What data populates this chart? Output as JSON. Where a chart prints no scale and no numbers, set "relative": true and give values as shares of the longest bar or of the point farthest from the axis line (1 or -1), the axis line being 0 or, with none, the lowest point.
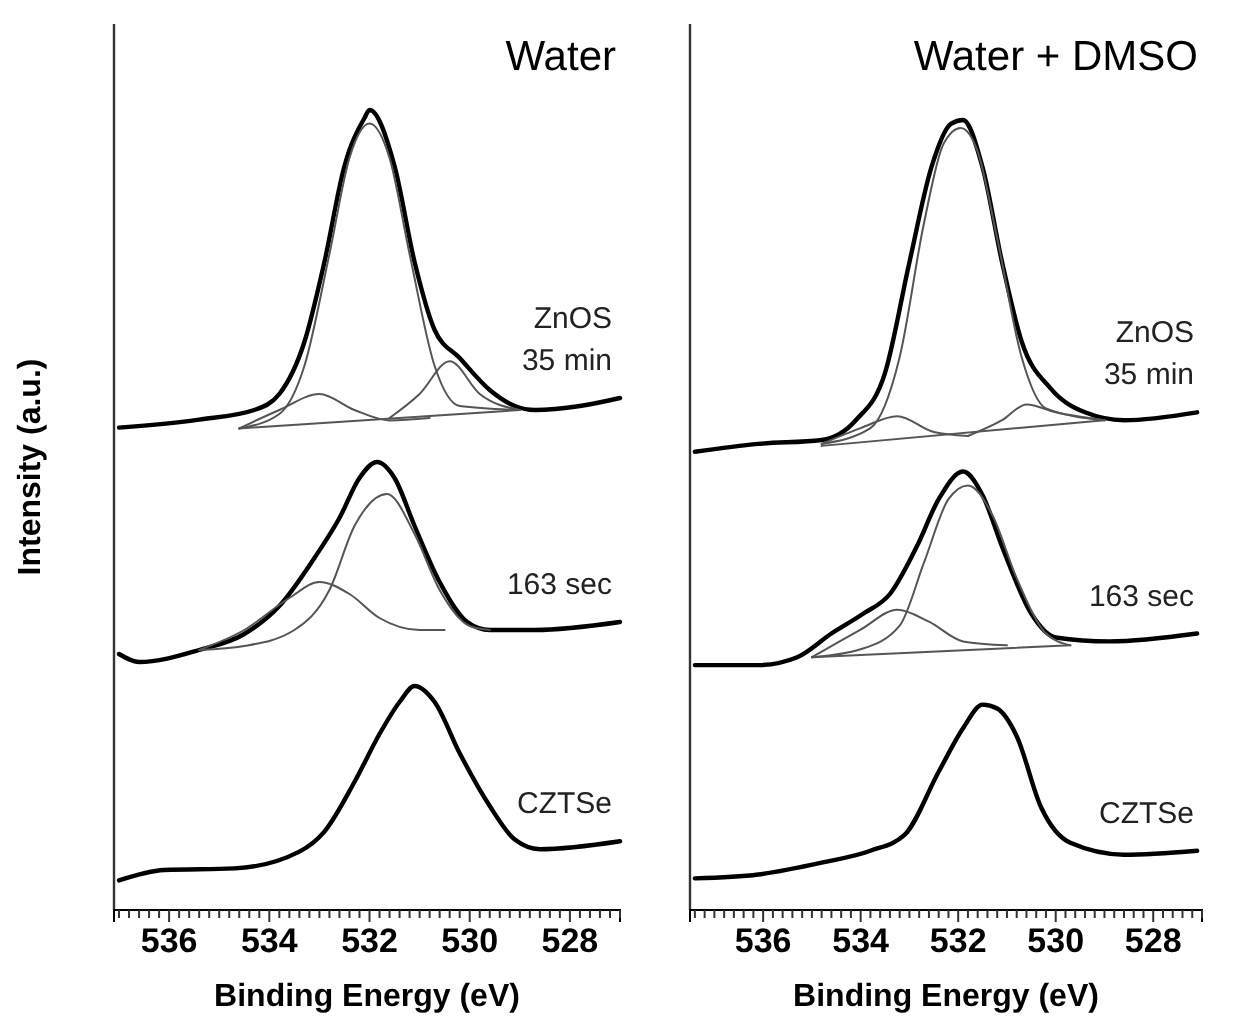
{
  "chart_data": [
    {
      "type": "line",
      "title": "Water",
      "xlabel": "Binding Energy (eV)",
      "ylabel": "Intensity (a.u.)",
      "relative": true,
      "xlim": [
        537.1,
        527
      ],
      "xticks": [
        {
          "value": 537,
          "label": null
        },
        {
          "value": 536.8,
          "label": null
        },
        {
          "value": 536.6,
          "label": null
        },
        {
          "value": 536.4,
          "label": null
        },
        {
          "value": 536.2,
          "label": null
        },
        536,
        {
          "value": 535.8,
          "label": null
        },
        {
          "value": 535.6,
          "label": null
        },
        {
          "value": 535.4,
          "label": null
        },
        {
          "value": 535.2,
          "label": null
        },
        {
          "value": 535,
          "label": null
        },
        {
          "value": 534.8,
          "label": null
        },
        {
          "value": 534.6,
          "label": null
        },
        {
          "value": 534.4,
          "label": null
        },
        {
          "value": 534.2,
          "label": null
        },
        534,
        {
          "value": 533.8,
          "label": null
        },
        {
          "value": 533.6,
          "label": null
        },
        {
          "value": 533.4,
          "label": null
        },
        {
          "value": 533.2,
          "label": null
        },
        {
          "value": 533,
          "label": null
        },
        {
          "value": 532.8,
          "label": null
        },
        {
          "value": 532.6,
          "label": null
        },
        {
          "value": 532.4,
          "label": null
        },
        {
          "value": 532.2,
          "label": null
        },
        532,
        {
          "value": 531.8,
          "label": null
        },
        {
          "value": 531.6,
          "label": null
        },
        {
          "value": 531.4,
          "label": null
        },
        {
          "value": 531.2,
          "label": null
        },
        {
          "value": 531,
          "label": null
        },
        {
          "value": 530.8,
          "label": null
        },
        {
          "value": 530.6,
          "label": null
        },
        {
          "value": 530.4,
          "label": null
        },
        {
          "value": 530.2,
          "label": null
        },
        530,
        {
          "value": 529.8,
          "label": null
        },
        {
          "value": 529.6,
          "label": null
        },
        {
          "value": 529.4,
          "label": null
        },
        {
          "value": 529.2,
          "label": null
        },
        {
          "value": 529,
          "label": null
        },
        {
          "value": 528.8,
          "label": null
        },
        {
          "value": 528.6,
          "label": null
        },
        {
          "value": 528.4,
          "label": null
        },
        {
          "value": 528.2,
          "label": null
        },
        528,
        {
          "value": 527.8,
          "label": null
        },
        {
          "value": 527.6,
          "label": null
        },
        {
          "value": 527.4,
          "label": null
        },
        {
          "value": 527.2,
          "label": null
        },
        {
          "value": 527,
          "label": null
        }
      ],
      "series": [
        {
          "name": "ZnOS\n35 min",
          "color": "#000000",
          "x": [
            537.0,
            535.4,
            534.3,
            533.8,
            533.3,
            532.9,
            532.5,
            532.1,
            532.0,
            531.5,
            531.1,
            530.7,
            530.2,
            529.6,
            529.1,
            528.7,
            527.8,
            527.0
          ],
          "values": [
            0.603,
            0.613,
            0.625,
            0.645,
            0.71,
            0.81,
            0.93,
            0.99,
            1.0,
            0.93,
            0.81,
            0.725,
            0.69,
            0.65,
            0.63,
            0.625,
            0.63,
            0.64
          ]
        },
        {
          "color": "#555555",
          "x": [
            534.6,
            533.8,
            533.3,
            532.8,
            532.4,
            532.0,
            531.6,
            531.2,
            530.7,
            530.2,
            529.0
          ],
          "values": [
            0.602,
            0.62,
            0.68,
            0.82,
            0.94,
            0.983,
            0.94,
            0.82,
            0.68,
            0.63,
            0.625
          ]
        },
        {
          "color": "#555555",
          "x": [
            534.6,
            533.8,
            533.0,
            532.3,
            531.6,
            530.8
          ],
          "values": [
            0.602,
            0.625,
            0.645,
            0.625,
            0.612,
            0.615
          ]
        },
        {
          "color": "#555555",
          "x": [
            531.6,
            531.0,
            530.4,
            529.8,
            529.0
          ],
          "values": [
            0.615,
            0.645,
            0.686,
            0.645,
            0.625
          ]
        },
        {
          "color": "#555555",
          "x": [
            534.6,
            529.0
          ],
          "values": [
            0.602,
            0.625
          ]
        },
        {
          "name": "163 sec",
          "color": "#000000",
          "x": [
            537.0,
            536.6,
            535.4,
            534.5,
            533.8,
            533.1,
            532.6,
            532.2,
            531.85,
            531.5,
            531.1,
            530.6,
            530.05,
            529.6,
            528.7,
            527.0
          ],
          "values": [
            0.32,
            0.31,
            0.325,
            0.345,
            0.38,
            0.44,
            0.49,
            0.54,
            0.56,
            0.54,
            0.48,
            0.41,
            0.36,
            0.35,
            0.35,
            0.36
          ]
        },
        {
          "color": "#555555",
          "x": [
            535.4,
            534.5,
            533.5,
            532.8,
            532.3,
            531.65,
            531.1,
            530.6,
            530.0,
            529.6
          ],
          "values": [
            0.325,
            0.33,
            0.35,
            0.4,
            0.48,
            0.52,
            0.47,
            0.4,
            0.355,
            0.35
          ]
        },
        {
          "color": "#555555",
          "x": [
            535.4,
            534.5,
            533.6,
            533.0,
            532.4,
            531.8,
            531.0,
            530.5
          ],
          "values": [
            0.325,
            0.35,
            0.39,
            0.41,
            0.395,
            0.365,
            0.35,
            0.35
          ]
        },
        {
          "name": "CZTSe",
          "color": "#000000",
          "x": [
            537.0,
            536.1,
            534.7,
            533.4,
            532.9,
            532.3,
            531.8,
            531.4,
            531.1,
            530.7,
            530.2,
            529.6,
            529.1,
            528.6,
            527.0
          ],
          "values": [
            0.037,
            0.05,
            0.052,
            0.073,
            0.098,
            0.16,
            0.22,
            0.26,
            0.28,
            0.26,
            0.196,
            0.13,
            0.088,
            0.076,
            0.086
          ]
        }
      ]
    },
    {
      "type": "line",
      "title": "Water + DMSO",
      "xlabel": "Binding Energy (eV)",
      "relative": true,
      "xlim": [
        537.5,
        527
      ],
      "xticks": [
        {
          "value": 537.4,
          "label": null
        },
        {
          "value": 537.2,
          "label": null
        },
        {
          "value": 537,
          "label": null
        },
        {
          "value": 536.8,
          "label": null
        },
        {
          "value": 536.6,
          "label": null
        },
        {
          "value": 536.4,
          "label": null
        },
        {
          "value": 536.2,
          "label": null
        },
        536,
        {
          "value": 535.8,
          "label": null
        },
        {
          "value": 535.6,
          "label": null
        },
        {
          "value": 535.4,
          "label": null
        },
        {
          "value": 535.2,
          "label": null
        },
        {
          "value": 535,
          "label": null
        },
        {
          "value": 534.8,
          "label": null
        },
        {
          "value": 534.6,
          "label": null
        },
        {
          "value": 534.4,
          "label": null
        },
        {
          "value": 534.2,
          "label": null
        },
        534,
        {
          "value": 533.8,
          "label": null
        },
        {
          "value": 533.6,
          "label": null
        },
        {
          "value": 533.4,
          "label": null
        },
        {
          "value": 533.2,
          "label": null
        },
        {
          "value": 533,
          "label": null
        },
        {
          "value": 532.8,
          "label": null
        },
        {
          "value": 532.6,
          "label": null
        },
        {
          "value": 532.4,
          "label": null
        },
        {
          "value": 532.2,
          "label": null
        },
        532,
        {
          "value": 531.8,
          "label": null
        },
        {
          "value": 531.6,
          "label": null
        },
        {
          "value": 531.4,
          "label": null
        },
        {
          "value": 531.2,
          "label": null
        },
        {
          "value": 531,
          "label": null
        },
        {
          "value": 530.8,
          "label": null
        },
        {
          "value": 530.6,
          "label": null
        },
        {
          "value": 530.4,
          "label": null
        },
        {
          "value": 530.2,
          "label": null
        },
        530,
        {
          "value": 529.8,
          "label": null
        },
        {
          "value": 529.6,
          "label": null
        },
        {
          "value": 529.4,
          "label": null
        },
        {
          "value": 529.2,
          "label": null
        },
        {
          "value": 529,
          "label": null
        },
        {
          "value": 528.8,
          "label": null
        },
        {
          "value": 528.6,
          "label": null
        },
        {
          "value": 528.4,
          "label": null
        },
        {
          "value": 528.2,
          "label": null
        },
        528,
        {
          "value": 527.8,
          "label": null
        },
        {
          "value": 527.6,
          "label": null
        },
        {
          "value": 527.4,
          "label": null
        },
        {
          "value": 527.2,
          "label": null
        },
        {
          "value": 527,
          "label": null
        }
      ],
      "series": [
        {
          "name": "ZnOS\n35 min",
          "color": "#000000",
          "x": [
            537.4,
            536.1,
            534.8,
            534.1,
            533.5,
            533.0,
            532.55,
            532.15,
            531.9,
            531.5,
            531.1,
            530.7,
            530.1,
            529.4,
            528.6,
            527.1
          ],
          "values": [
            0.58,
            0.59,
            0.595,
            0.62,
            0.68,
            0.82,
            0.94,
            0.995,
            1.0,
            0.94,
            0.82,
            0.72,
            0.66,
            0.63,
            0.62,
            0.63
          ]
        },
        {
          "color": "#555555",
          "x": [
            534.8,
            533.8,
            533.2,
            532.7,
            532.3,
            531.95,
            531.6,
            531.2,
            530.7,
            530.2,
            529.0
          ],
          "values": [
            0.59,
            0.61,
            0.7,
            0.87,
            0.97,
            0.99,
            0.96,
            0.85,
            0.7,
            0.635,
            0.62
          ]
        },
        {
          "color": "#555555",
          "x": [
            534.8,
            534.0,
            533.25,
            532.5,
            531.8
          ],
          "values": [
            0.59,
            0.61,
            0.625,
            0.605,
            0.6
          ]
        },
        {
          "color": "#555555",
          "x": [
            531.8,
            531.1,
            530.6,
            530.0,
            529.0
          ],
          "values": [
            0.6,
            0.62,
            0.64,
            0.63,
            0.62
          ]
        },
        {
          "color": "#555555",
          "x": [
            534.8,
            529.0
          ],
          "values": [
            0.5875,
            0.62
          ]
        },
        {
          "name": "163 sec",
          "color": "#000000",
          "x": [
            537.4,
            536.1,
            535.3,
            534.6,
            533.95,
            533.4,
            532.85,
            532.4,
            531.9,
            531.5,
            531.1,
            530.5,
            530.0,
            528.9,
            527.1
          ],
          "values": [
            0.31,
            0.31,
            0.32,
            0.35,
            0.375,
            0.4,
            0.46,
            0.52,
            0.555,
            0.525,
            0.46,
            0.375,
            0.345,
            0.34,
            0.35
          ]
        },
        {
          "color": "#555555",
          "x": [
            535.0,
            534.0,
            533.2,
            532.7,
            532.2,
            531.8,
            531.3,
            530.8,
            530.2,
            529.7
          ],
          "values": [
            0.32,
            0.33,
            0.36,
            0.44,
            0.52,
            0.5375,
            0.5,
            0.42,
            0.35,
            0.335
          ]
        },
        {
          "color": "#555555",
          "x": [
            535.0,
            534.0,
            533.25,
            532.6,
            531.9,
            531.0
          ],
          "values": [
            0.32,
            0.355,
            0.38,
            0.365,
            0.34,
            0.335
          ]
        },
        {
          "color": "#555555",
          "x": [
            535.0,
            529.7
          ],
          "values": [
            0.32,
            0.335
          ]
        },
        {
          "name": "CZTSe",
          "color": "#000000",
          "x": [
            537.4,
            536.1,
            534.8,
            533.8,
            533.1,
            532.4,
            531.9,
            531.5,
            531.2,
            530.8,
            530.3,
            529.7,
            528.6,
            527.1
          ],
          "values": [
            0.04,
            0.045,
            0.06,
            0.075,
            0.095,
            0.175,
            0.23,
            0.26,
            0.255,
            0.22,
            0.13,
            0.085,
            0.07,
            0.075
          ]
        }
      ]
    }
  ]
}
